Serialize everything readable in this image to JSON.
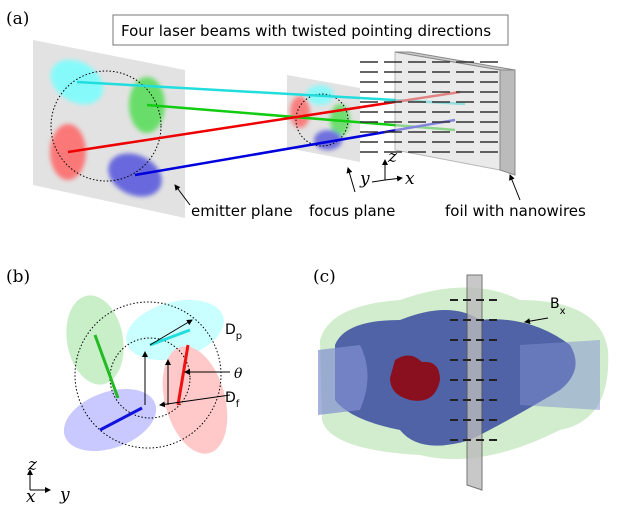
{
  "panels": [
    {
      "label": "(a)",
      "title": "Four laser beams with  twisted pointing directions",
      "annotations": [
        "emitter plane",
        "focus plane",
        "foil with nanowires"
      ],
      "axes": [
        "y",
        "z",
        "x"
      ]
    },
    {
      "label": "(b)",
      "annotations": [
        {
          "symbol": "D",
          "subscript": "p"
        },
        {
          "symbol": "θ"
        },
        {
          "symbol": "D",
          "subscript": "f"
        }
      ],
      "axes": [
        "z",
        "x",
        "y"
      ]
    },
    {
      "label": "(c)",
      "annotations": [
        {
          "symbol": "B",
          "subscript": "x"
        }
      ]
    }
  ]
}
